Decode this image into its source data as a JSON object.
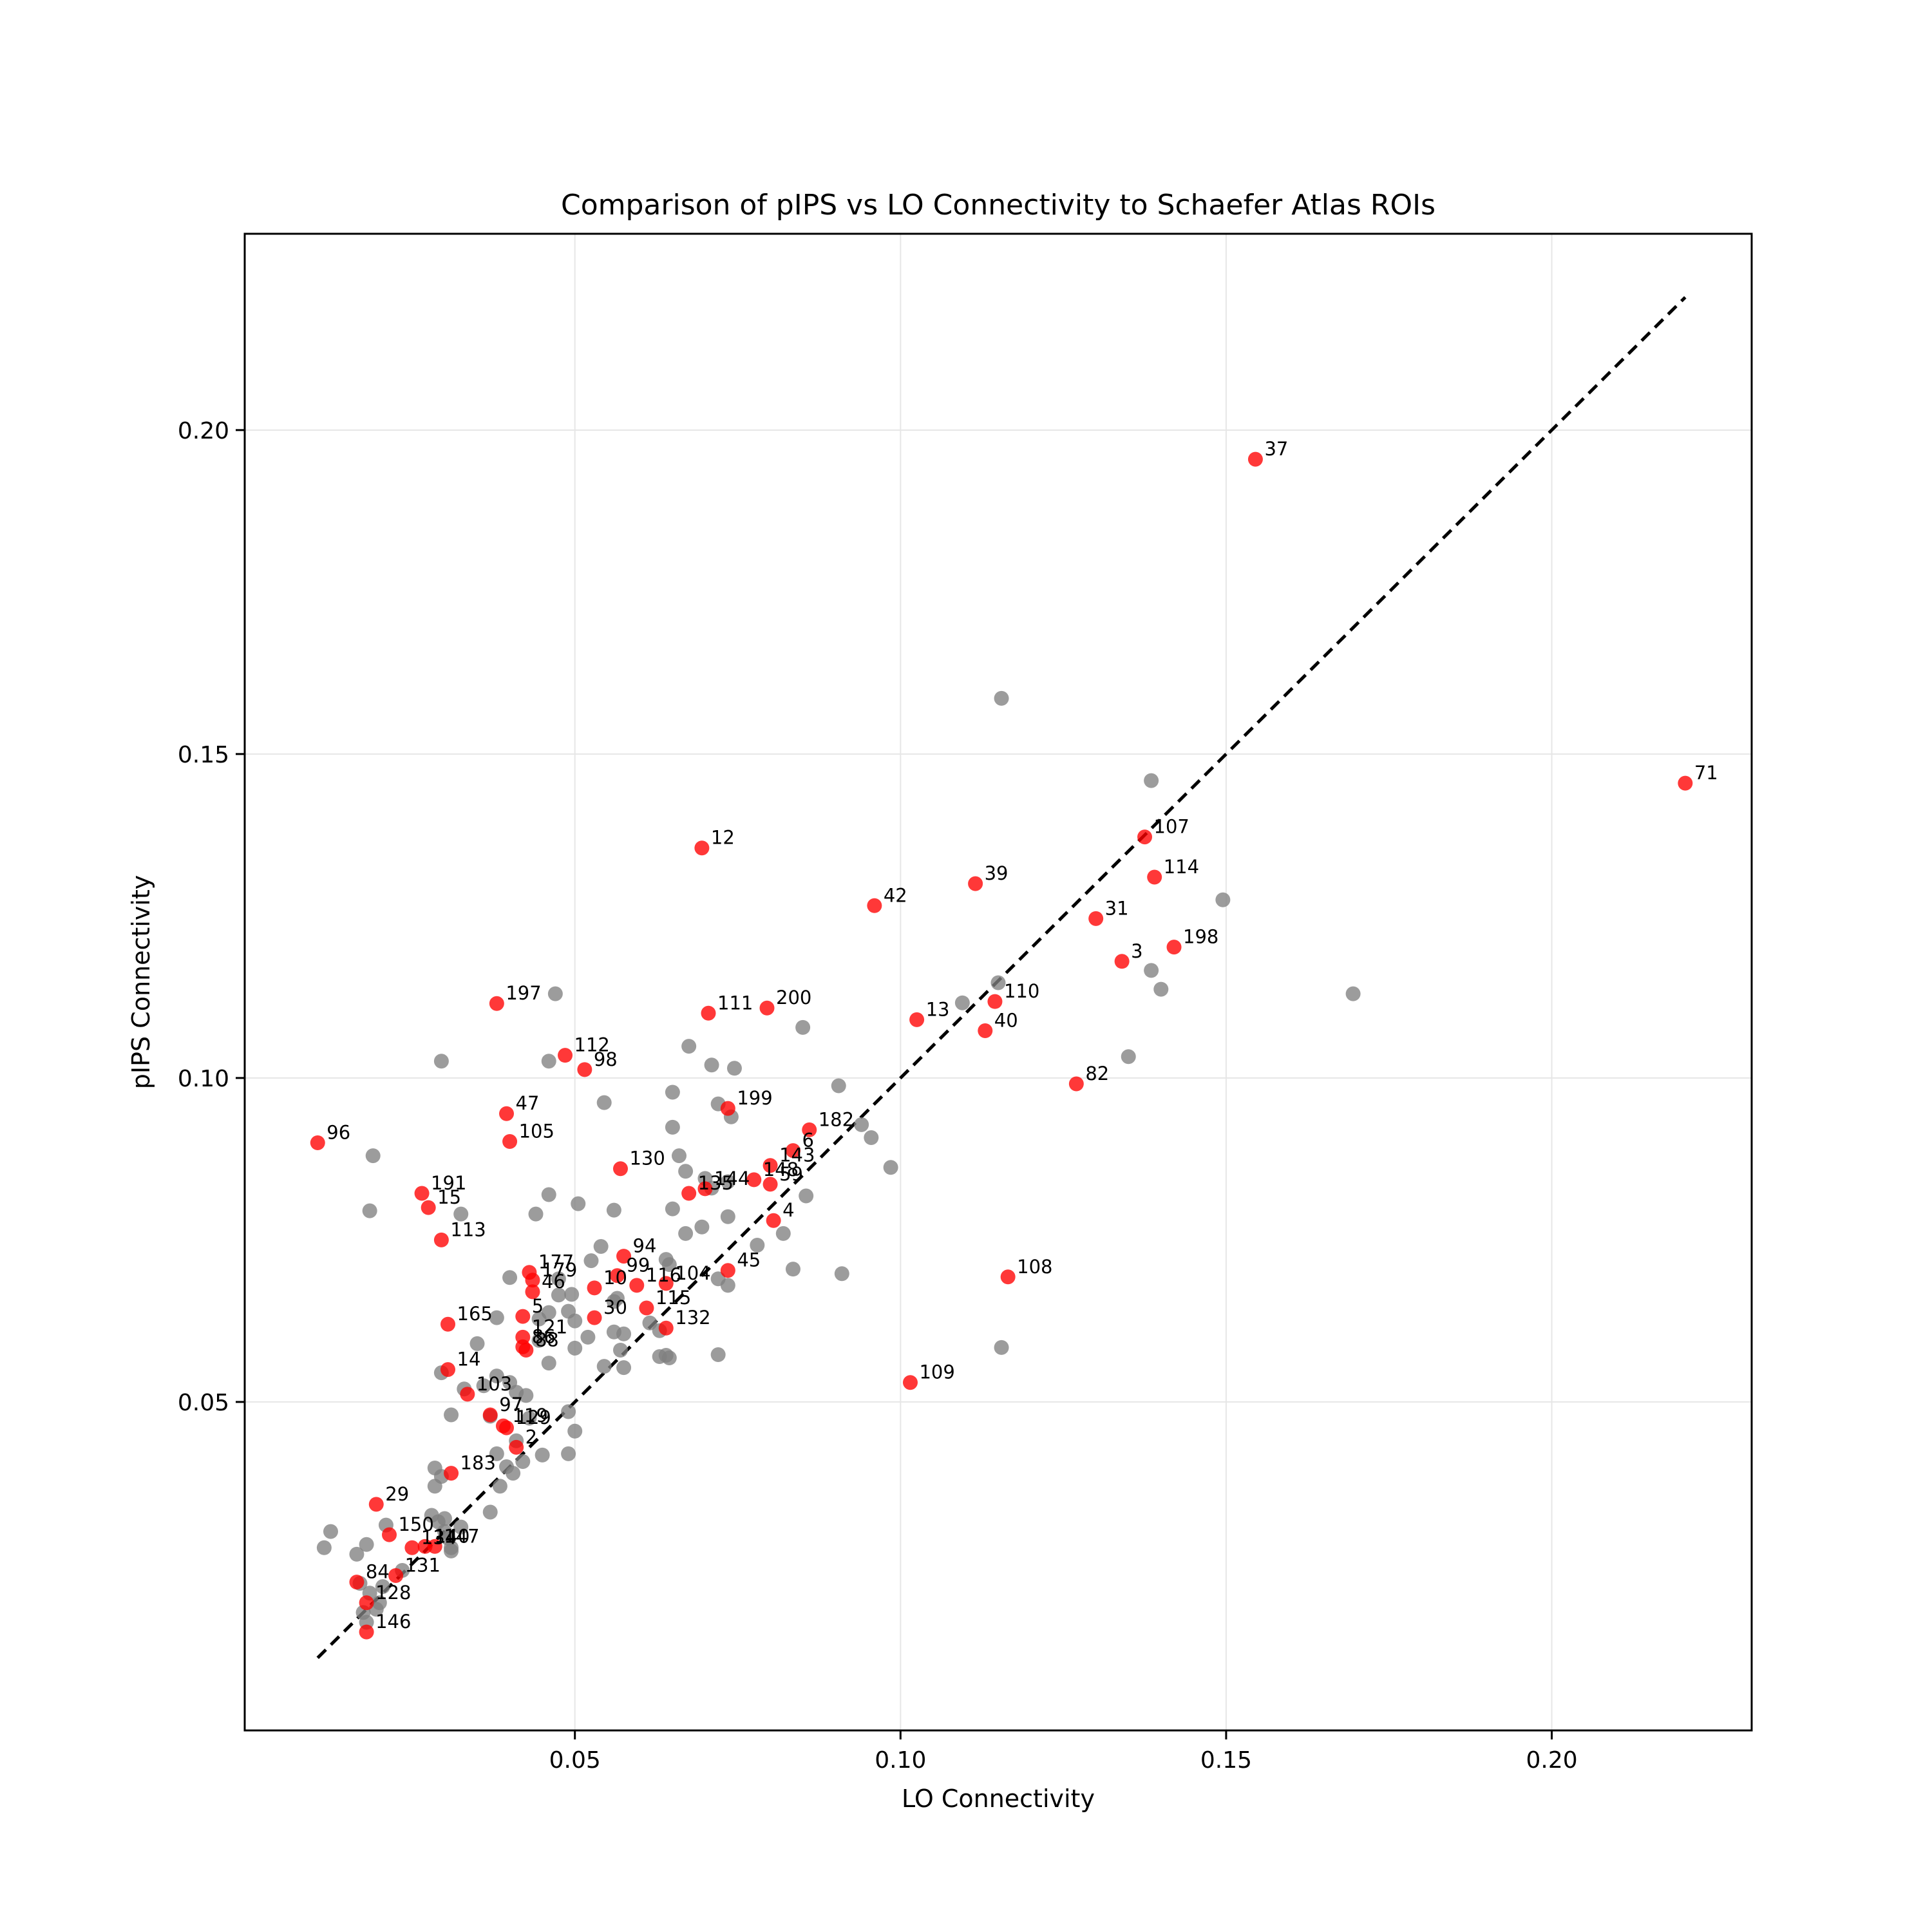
{
  "chart_data": {
    "type": "scatter",
    "title": "Comparison of pIPS vs LO Connectivity to Schaefer Atlas ROIs",
    "xlabel": "LO Connectivity",
    "ylabel": "pIPS Connectivity",
    "xlim": [
      -0.0007,
      0.2307
    ],
    "ylim": [
      -0.0007,
      0.2303
    ],
    "xticks": [
      "0.05",
      "0.10",
      "0.15",
      "0.20"
    ],
    "yticks": [
      "0.05",
      "0.10",
      "0.15",
      "0.20"
    ],
    "grid": true,
    "legend": "none",
    "colors": {
      "highlighted": "#ff0000",
      "other": "#808080",
      "diagonal": "#000000",
      "grid": "#e6e6e6"
    },
    "diagonal_line": {
      "x": [
        0.0105,
        0.2205
      ],
      "y": [
        0.0105,
        0.2205
      ],
      "style": "dashed"
    },
    "series": [
      {
        "color": "red",
        "points": [
          {
            "label": "37",
            "x": 0.1545,
            "y": 0.1955
          },
          {
            "label": "71",
            "x": 0.2205,
            "y": 0.1455
          },
          {
            "label": "107",
            "x": 0.1375,
            "y": 0.1372
          },
          {
            "label": "114",
            "x": 0.139,
            "y": 0.131
          },
          {
            "label": "12",
            "x": 0.0695,
            "y": 0.1355
          },
          {
            "label": "39",
            "x": 0.1115,
            "y": 0.13
          },
          {
            "label": "42",
            "x": 0.096,
            "y": 0.1266
          },
          {
            "label": "31",
            "x": 0.13,
            "y": 0.1246
          },
          {
            "label": "198",
            "x": 0.142,
            "y": 0.1202
          },
          {
            "label": "3",
            "x": 0.134,
            "y": 0.118
          },
          {
            "label": "197",
            "x": 0.038,
            "y": 0.1115
          },
          {
            "label": "110",
            "x": 0.1145,
            "y": 0.1118
          },
          {
            "label": "111",
            "x": 0.0705,
            "y": 0.11
          },
          {
            "label": "200",
            "x": 0.0795,
            "y": 0.1108
          },
          {
            "label": "13",
            "x": 0.1025,
            "y": 0.109
          },
          {
            "label": "40",
            "x": 0.113,
            "y": 0.1073
          },
          {
            "label": "112",
            "x": 0.0485,
            "y": 0.1035
          },
          {
            "label": "98",
            "x": 0.0515,
            "y": 0.1013
          },
          {
            "label": "82",
            "x": 0.127,
            "y": 0.0991
          },
          {
            "label": "47",
            "x": 0.0395,
            "y": 0.0945
          },
          {
            "label": "199",
            "x": 0.0735,
            "y": 0.0953
          },
          {
            "label": "182",
            "x": 0.086,
            "y": 0.092
          },
          {
            "label": "96",
            "x": 0.0105,
            "y": 0.09
          },
          {
            "label": "105",
            "x": 0.04,
            "y": 0.0902
          },
          {
            "label": "6",
            "x": 0.0835,
            "y": 0.0888
          },
          {
            "label": "143",
            "x": 0.08,
            "y": 0.0865
          },
          {
            "label": "130",
            "x": 0.057,
            "y": 0.086
          },
          {
            "label": "148",
            "x": 0.0775,
            "y": 0.0843
          },
          {
            "label": "59",
            "x": 0.08,
            "y": 0.0836
          },
          {
            "label": "144",
            "x": 0.07,
            "y": 0.0829
          },
          {
            "label": "135",
            "x": 0.0675,
            "y": 0.0822
          },
          {
            "label": "191",
            "x": 0.0265,
            "y": 0.0822
          },
          {
            "label": "15",
            "x": 0.0275,
            "y": 0.08
          },
          {
            "label": "4",
            "x": 0.0805,
            "y": 0.078
          },
          {
            "label": "113",
            "x": 0.0295,
            "y": 0.075
          },
          {
            "label": "94",
            "x": 0.0575,
            "y": 0.0725
          },
          {
            "label": "108",
            "x": 0.1165,
            "y": 0.0693
          },
          {
            "label": "45",
            "x": 0.0735,
            "y": 0.0703
          },
          {
            "label": "177",
            "x": 0.043,
            "y": 0.07
          },
          {
            "label": "99",
            "x": 0.0565,
            "y": 0.0695
          },
          {
            "label": "179",
            "x": 0.0435,
            "y": 0.0688
          },
          {
            "label": "104",
            "x": 0.064,
            "y": 0.0683
          },
          {
            "label": "116",
            "x": 0.0595,
            "y": 0.068
          },
          {
            "label": "10",
            "x": 0.053,
            "y": 0.0676
          },
          {
            "label": "46",
            "x": 0.0435,
            "y": 0.067
          },
          {
            "label": "115",
            "x": 0.061,
            "y": 0.0645
          },
          {
            "label": "5",
            "x": 0.042,
            "y": 0.0632
          },
          {
            "label": "30",
            "x": 0.053,
            "y": 0.063
          },
          {
            "label": "165",
            "x": 0.0305,
            "y": 0.062
          },
          {
            "label": "132",
            "x": 0.064,
            "y": 0.0614
          },
          {
            "label": "121",
            "x": 0.042,
            "y": 0.06
          },
          {
            "label": "86",
            "x": 0.042,
            "y": 0.0585
          },
          {
            "label": "88",
            "x": 0.0425,
            "y": 0.058
          },
          {
            "label": "14",
            "x": 0.0305,
            "y": 0.055
          },
          {
            "label": "109",
            "x": 0.1015,
            "y": 0.053
          },
          {
            "label": "103",
            "x": 0.0335,
            "y": 0.0512
          },
          {
            "label": "97",
            "x": 0.037,
            "y": 0.048
          },
          {
            "label": "119",
            "x": 0.039,
            "y": 0.0463
          },
          {
            "label": "129",
            "x": 0.0395,
            "y": 0.046
          },
          {
            "label": "2",
            "x": 0.041,
            "y": 0.043
          },
          {
            "label": "183",
            "x": 0.031,
            "y": 0.039
          },
          {
            "label": "29",
            "x": 0.0195,
            "y": 0.0342
          },
          {
            "label": "150",
            "x": 0.0215,
            "y": 0.0295
          },
          {
            "label": "134",
            "x": 0.025,
            "y": 0.0275
          },
          {
            "label": "140",
            "x": 0.027,
            "y": 0.0277
          },
          {
            "label": "147",
            "x": 0.0285,
            "y": 0.0277
          },
          {
            "label": "131",
            "x": 0.0225,
            "y": 0.0232
          },
          {
            "label": "84",
            "x": 0.0165,
            "y": 0.0222
          },
          {
            "label": "128",
            "x": 0.018,
            "y": 0.019
          },
          {
            "label": "146",
            "x": 0.018,
            "y": 0.0145
          }
        ]
      },
      {
        "color": "gray",
        "points": [
          [
            0.1155,
            0.1586
          ],
          [
            0.1385,
            0.1459
          ],
          [
            0.1495,
            0.1275
          ],
          [
            0.1385,
            0.1166
          ],
          [
            0.14,
            0.1137
          ],
          [
            0.115,
            0.1147
          ],
          [
            0.1095,
            0.1116
          ],
          [
            0.1695,
            0.113
          ],
          [
            0.135,
            0.1033
          ],
          [
            0.085,
            0.1078
          ],
          [
            0.0675,
            0.1049
          ],
          [
            0.047,
            0.113
          ],
          [
            0.0295,
            0.1026
          ],
          [
            0.046,
            0.1026
          ],
          [
            0.071,
            0.102
          ],
          [
            0.0745,
            0.1015
          ],
          [
            0.0905,
            0.0988
          ],
          [
            0.065,
            0.0978
          ],
          [
            0.0545,
            0.0962
          ],
          [
            0.072,
            0.096
          ],
          [
            0.074,
            0.094
          ],
          [
            0.065,
            0.0924
          ],
          [
            0.094,
            0.0928
          ],
          [
            0.0955,
            0.0908
          ],
          [
            0.066,
            0.088
          ],
          [
            0.0985,
            0.0862
          ],
          [
            0.019,
            0.088
          ],
          [
            0.067,
            0.0856
          ],
          [
            0.07,
            0.0845
          ],
          [
            0.0735,
            0.084
          ],
          [
            0.071,
            0.083
          ],
          [
            0.0855,
            0.0818
          ],
          [
            0.046,
            0.082
          ],
          [
            0.0505,
            0.0806
          ],
          [
            0.056,
            0.0796
          ],
          [
            0.065,
            0.0798
          ],
          [
            0.0185,
            0.0795
          ],
          [
            0.0325,
            0.079
          ],
          [
            0.044,
            0.079
          ],
          [
            0.0735,
            0.0786
          ],
          [
            0.0695,
            0.077
          ],
          [
            0.067,
            0.076
          ],
          [
            0.082,
            0.076
          ],
          [
            0.078,
            0.0742
          ],
          [
            0.054,
            0.074
          ],
          [
            0.064,
            0.072
          ],
          [
            0.0525,
            0.0718
          ],
          [
            0.0645,
            0.0712
          ],
          [
            0.0835,
            0.0705
          ],
          [
            0.091,
            0.0698
          ],
          [
            0.04,
            0.0692
          ],
          [
            0.0475,
            0.069
          ],
          [
            0.072,
            0.069
          ],
          [
            0.0735,
            0.068
          ],
          [
            0.0495,
            0.0666
          ],
          [
            0.0565,
            0.066
          ],
          [
            0.0475,
            0.0665
          ],
          [
            0.056,
            0.0655
          ],
          [
            0.046,
            0.0638
          ],
          [
            0.049,
            0.064
          ],
          [
            0.0445,
            0.0628
          ],
          [
            0.05,
            0.0625
          ],
          [
            0.038,
            0.063
          ],
          [
            0.0615,
            0.0622
          ],
          [
            0.063,
            0.061
          ],
          [
            0.056,
            0.0608
          ],
          [
            0.0575,
            0.0605
          ],
          [
            0.052,
            0.06
          ],
          [
            0.0445,
            0.0595
          ],
          [
            0.035,
            0.059
          ],
          [
            0.05,
            0.0583
          ],
          [
            0.057,
            0.058
          ],
          [
            0.072,
            0.0573
          ],
          [
            0.064,
            0.0572
          ],
          [
            0.063,
            0.057
          ],
          [
            0.0645,
            0.0568
          ],
          [
            0.1155,
            0.0584
          ],
          [
            0.046,
            0.056
          ],
          [
            0.0545,
            0.0555
          ],
          [
            0.0575,
            0.0553
          ],
          [
            0.0295,
            0.0545
          ],
          [
            0.038,
            0.054
          ],
          [
            0.04,
            0.053
          ],
          [
            0.036,
            0.0525
          ],
          [
            0.033,
            0.052
          ],
          [
            0.041,
            0.0515
          ],
          [
            0.0425,
            0.051
          ],
          [
            0.049,
            0.0485
          ],
          [
            0.031,
            0.048
          ],
          [
            0.037,
            0.0478
          ],
          [
            0.043,
            0.0475
          ],
          [
            0.05,
            0.0455
          ],
          [
            0.041,
            0.044
          ],
          [
            0.038,
            0.042
          ],
          [
            0.049,
            0.042
          ],
          [
            0.045,
            0.0418
          ],
          [
            0.042,
            0.0408
          ],
          [
            0.0395,
            0.04
          ],
          [
            0.0285,
            0.0398
          ],
          [
            0.0405,
            0.039
          ],
          [
            0.0295,
            0.0385
          ],
          [
            0.0285,
            0.037
          ],
          [
            0.0385,
            0.037
          ],
          [
            0.037,
            0.033
          ],
          [
            0.028,
            0.0325
          ],
          [
            0.03,
            0.032
          ],
          [
            0.029,
            0.0315
          ],
          [
            0.021,
            0.031
          ],
          [
            0.0325,
            0.0307
          ],
          [
            0.03,
            0.03
          ],
          [
            0.0305,
            0.029
          ],
          [
            0.0125,
            0.03
          ],
          [
            0.0165,
            0.0265
          ],
          [
            0.018,
            0.028
          ],
          [
            0.0115,
            0.0275
          ],
          [
            0.031,
            0.0275
          ],
          [
            0.031,
            0.027
          ],
          [
            0.0235,
            0.024
          ],
          [
            0.017,
            0.022
          ],
          [
            0.0205,
            0.0215
          ],
          [
            0.0185,
            0.0205
          ],
          [
            0.02,
            0.019
          ],
          [
            0.0195,
            0.018
          ],
          [
            0.0175,
            0.0175
          ],
          [
            0.018,
            0.016
          ]
        ]
      }
    ]
  }
}
